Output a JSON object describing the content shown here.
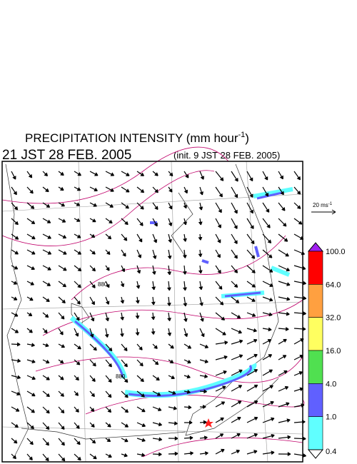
{
  "header": {
    "title": "PRECIPITATION INTENSITY (mm hour",
    "title_sup": "-1",
    "title_end": ")",
    "time": "21 JST 28 FEB. 2005",
    "init": "(init. 9 JST 28 FEB. 2005)"
  },
  "wind_reference": {
    "text": "20 ms",
    "sup": "-1"
  },
  "map": {
    "contour_labels": [
      "880",
      "880"
    ]
  },
  "colorbar": {
    "labels": [
      "100.0",
      "64.0",
      "32.0",
      "16.0",
      "4.0",
      "1.0",
      "0.4"
    ],
    "colors": [
      "#ff0000",
      "#ffa040",
      "#ffff60",
      "#50e050",
      "#6060ff",
      "#60ffff"
    ],
    "top_color": "#a020f0",
    "bottom_color": "#ffffff"
  }
}
